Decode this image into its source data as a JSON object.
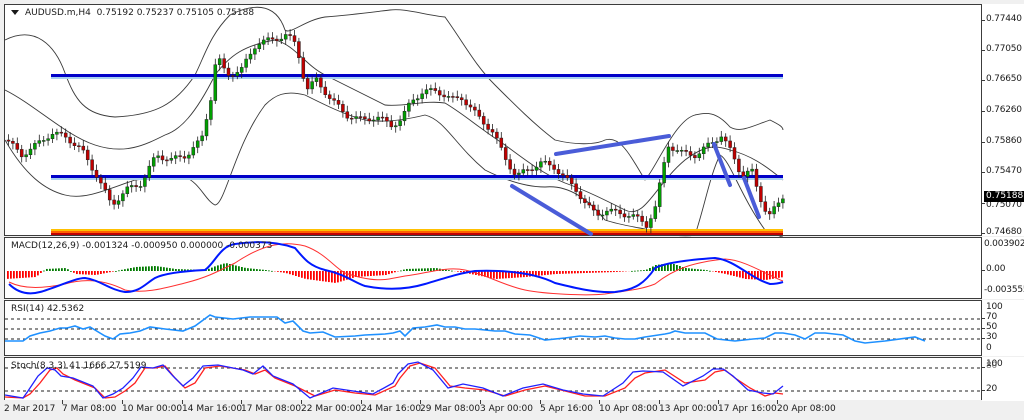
{
  "window": {
    "symbol": "AUDUSD.m,H4",
    "ohlc": "0.75192 0.75237 0.75105 0.75188",
    "dropdown_icon": "triangle-down-icon"
  },
  "main_panel": {
    "price_axis": [
      "0.77440",
      "0.77050",
      "0.76650",
      "0.76260",
      "0.75860",
      "0.75470",
      "0.75070",
      "0.74680"
    ],
    "current_price": "0.75188",
    "horizontal_levels": [
      {
        "price": 0.7665,
        "color": "#0000c8"
      },
      {
        "price": 0.7545,
        "color": "#0000c8"
      },
      {
        "price": 0.747,
        "color": "#e06000",
        "style": "support-band"
      }
    ],
    "indicators": [
      "Bollinger Bands"
    ],
    "trendline_color": "#4a5cd8"
  },
  "macd_panel": {
    "title": "MACD(12,26,9) -0.001324 -0.000950 0.000000 -0.000373",
    "axis": [
      "0.003902",
      "0.00",
      "-0.003555"
    ],
    "colors": {
      "macd": "#0018ff",
      "signal": "#ff2020",
      "hist_pos": "#007a00",
      "hist_neg": "#ff0000"
    }
  },
  "rsi_panel": {
    "title": "RSI(14) 42.5362",
    "axis": [
      "100",
      "70",
      "50",
      "30",
      "0"
    ],
    "color": "#1e90ff"
  },
  "stoch_panel": {
    "title": "Stoch(8,3,3) 41.1666 27.5199",
    "axis": [
      "100",
      "80",
      "20"
    ],
    "colors": {
      "main": "#2020ff",
      "signal": "#ff2020"
    }
  },
  "time_axis": {
    "labels": [
      "2 Mar 2017",
      "7 Mar 08:00",
      "10 Mar 00:00",
      "14 Mar 16:00",
      "17 Mar 08:00",
      "22 Mar 00:00",
      "24 Mar 16:00",
      "29 Mar 08:00",
      "3 Apr 00:00",
      "5 Apr 16:00",
      "10 Apr 08:00",
      "13 Apr 00:00",
      "17 Apr 16:00",
      "20 Apr 08:00"
    ]
  }
}
